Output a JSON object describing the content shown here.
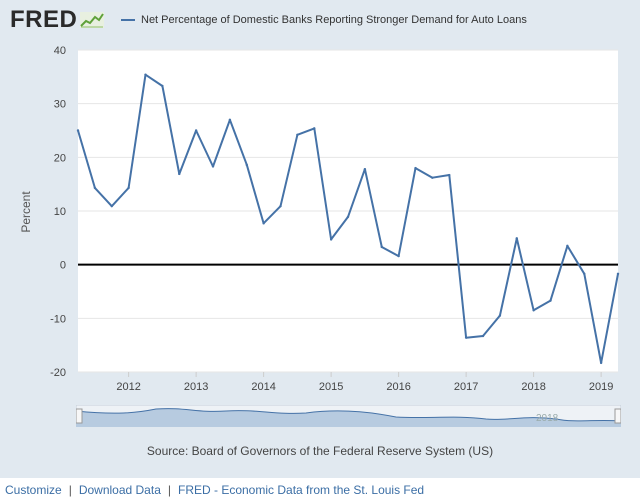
{
  "brand": {
    "logo_text": "FRED"
  },
  "chart_data": {
    "type": "line",
    "title": "Net Percentage of Domestic Banks Reporting Stronger Demand for Auto Loans",
    "ylabel": "Percent",
    "xlabel": "",
    "ylim": [
      -20,
      40
    ],
    "xlim": [
      2011.25,
      2019.25
    ],
    "yticks": [
      40,
      30,
      20,
      10,
      0,
      -10,
      -20
    ],
    "xticks": [
      2012,
      2013,
      2014,
      2015,
      2016,
      2017,
      2018,
      2019
    ],
    "xtick_labels": [
      "2012",
      "2013",
      "2014",
      "2015",
      "2016",
      "2017",
      "2018",
      "2019"
    ],
    "series": [
      {
        "name": "Net Percentage of Domestic Banks Reporting Stronger Demand for Auto Loans",
        "color": "#4572a7",
        "x": [
          2011.25,
          2011.5,
          2011.75,
          2012.0,
          2012.25,
          2012.5,
          2012.75,
          2013.0,
          2013.25,
          2013.5,
          2013.75,
          2014.0,
          2014.25,
          2014.5,
          2014.75,
          2015.0,
          2015.25,
          2015.5,
          2015.75,
          2016.0,
          2016.25,
          2016.5,
          2016.75,
          2017.0,
          2017.25,
          2017.5,
          2017.75,
          2018.0,
          2018.25,
          2018.5,
          2018.75,
          2019.0,
          2019.25
        ],
        "values": [
          25,
          14.3,
          10.9,
          14.3,
          35.4,
          33.3,
          16.9,
          25.0,
          18.3,
          27.0,
          18.6,
          7.7,
          10.9,
          24.2,
          25.4,
          4.7,
          8.9,
          17.8,
          3.3,
          1.6,
          18.0,
          16.2,
          16.7,
          -13.6,
          -13.3,
          -9.5,
          4.9,
          -8.5,
          -6.7,
          3.5,
          -1.7,
          -18.3,
          -1.7
        ]
      }
    ],
    "zero_line": true,
    "grid": true,
    "legend": "top-left"
  },
  "source_text": "Source: Board of Governors of the Federal Reserve System (US)",
  "footer": {
    "customize": "Customize",
    "download": "Download Data",
    "fred_link": "FRED - Economic Data from the St. Louis Fed",
    "separator": "|"
  },
  "navigator": {
    "label": "2018"
  },
  "colors": {
    "line": "#4572a7",
    "background": "#e1e9f0",
    "plot": "#ffffff",
    "navigator_fill": "#b7cbe0"
  }
}
